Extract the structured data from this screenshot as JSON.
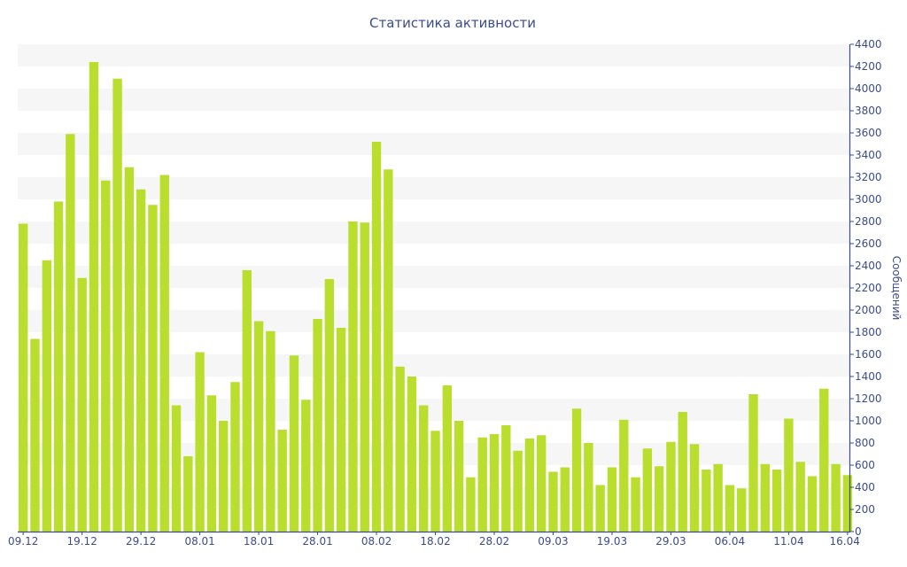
{
  "chart_data": {
    "type": "bar",
    "title": "Статистика активности",
    "xlabel": "",
    "ylabel": "Сообщений",
    "ylim": [
      0,
      4400
    ],
    "y_ticks": [
      0,
      200,
      400,
      600,
      800,
      1000,
      1200,
      1400,
      1600,
      1800,
      2000,
      2200,
      2400,
      2600,
      2800,
      3000,
      3200,
      3400,
      3600,
      3800,
      4000,
      4200,
      4400
    ],
    "y_axis_position": "right",
    "grid": "alternating horizontal bands",
    "legend": "none",
    "bar_color": "#bade2e",
    "band_color": "#f6f6f6",
    "axis_color": "#3b4c8c",
    "x_tick_labels": [
      {
        "label": "09.12",
        "index": 0
      },
      {
        "label": "19.12",
        "index": 5
      },
      {
        "label": "29.12",
        "index": 10
      },
      {
        "label": "08.01",
        "index": 15
      },
      {
        "label": "18.01",
        "index": 20
      },
      {
        "label": "28.01",
        "index": 25
      },
      {
        "label": "08.02",
        "index": 30
      },
      {
        "label": "18.02",
        "index": 35
      },
      {
        "label": "28.02",
        "index": 40
      },
      {
        "label": "09.03",
        "index": 45
      },
      {
        "label": "19.03",
        "index": 50
      },
      {
        "label": "29.03",
        "index": 55
      },
      {
        "label": "06.04",
        "index": 60
      },
      {
        "label": "11.04",
        "index": 65
      },
      {
        "label": "16.04",
        "index": 70
      }
    ],
    "values": [
      2780,
      1740,
      2450,
      2980,
      3590,
      2290,
      4240,
      3170,
      4090,
      3290,
      3090,
      2950,
      3220,
      1140,
      680,
      1620,
      1230,
      1000,
      1350,
      2360,
      1900,
      1810,
      920,
      1590,
      1190,
      1920,
      2280,
      1840,
      2800,
      2790,
      3520,
      3270,
      1490,
      1400,
      1140,
      910,
      1320,
      1000,
      490,
      850,
      880,
      960,
      730,
      840,
      870,
      540,
      580,
      1110,
      800,
      420,
      580,
      1010,
      490,
      750,
      590,
      810,
      1080,
      790,
      560,
      610,
      420,
      390,
      1240,
      610,
      560,
      1020,
      630,
      500,
      1290,
      610,
      510
    ]
  }
}
